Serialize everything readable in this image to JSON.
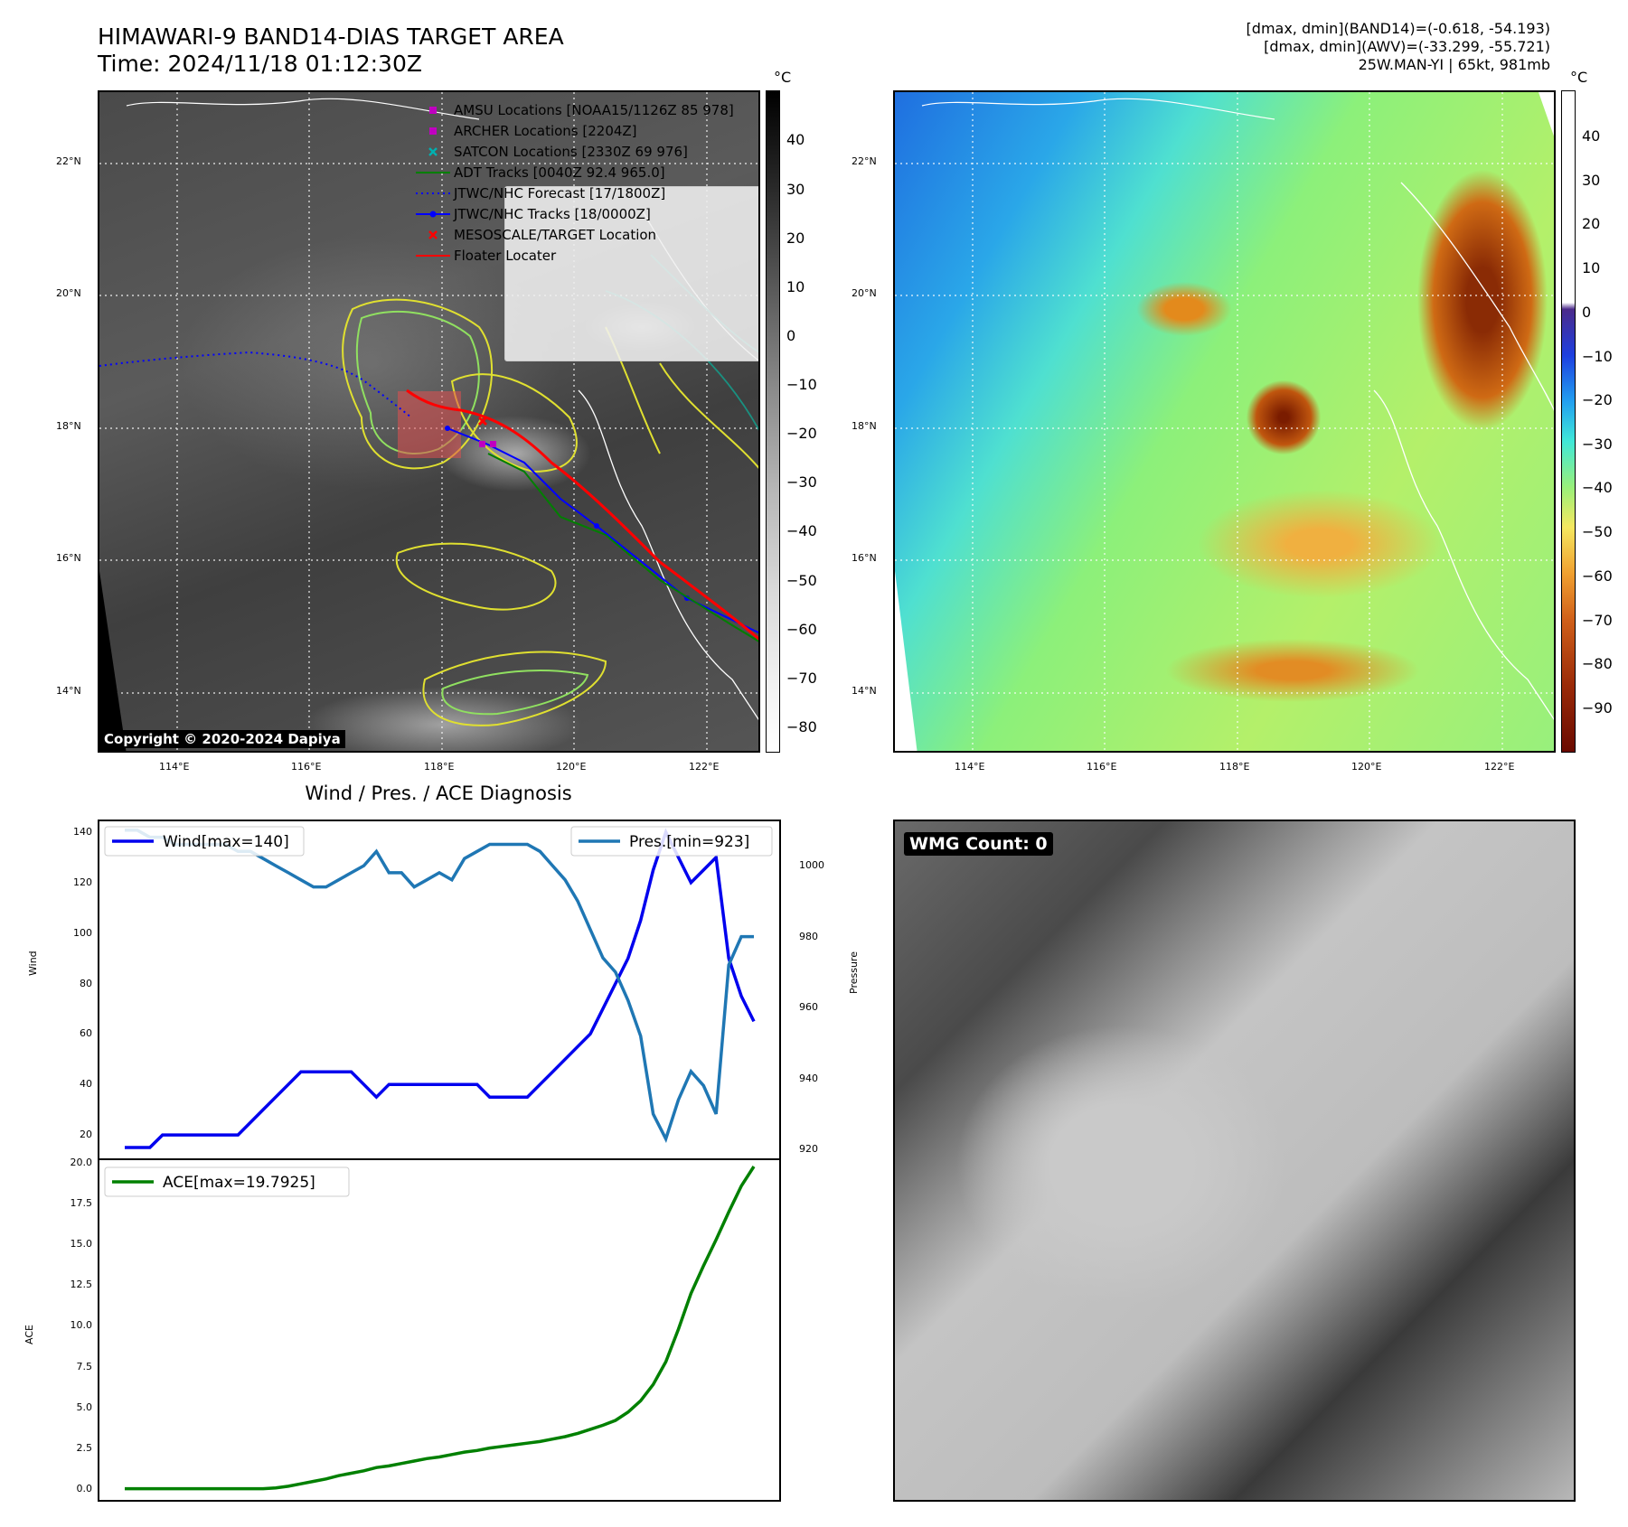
{
  "header": {
    "title_line1": "HIMAWARI-9 BAND14-DIAS TARGET AREA",
    "title_line2": "Time: 2024/11/18 01:12:30Z",
    "stats_line1": "[dmax, dmin](BAND14)=(-0.618, -54.193)",
    "stats_line2": "[dmax, dmin](AWV)=(-33.299, -55.721)",
    "stats_line3": "25W.MAN-YI | 65kt, 981mb"
  },
  "map_left": {
    "lat_ticks": [
      "22°N",
      "20°N",
      "18°N",
      "16°N",
      "14°N"
    ],
    "lon_ticks": [
      "114°E",
      "116°E",
      "118°E",
      "120°E",
      "122°E"
    ],
    "colorbar_unit": "°C",
    "colorbar_ticks": [
      "40",
      "30",
      "20",
      "10",
      "0",
      "−10",
      "−20",
      "−30",
      "−40",
      "−50",
      "−60",
      "−70",
      "−80"
    ],
    "copyright": "Copyright © 2020-2024 Dapiya",
    "legend": [
      {
        "label": "AMSU Locations [NOAA15/1126Z 85 978]",
        "color": "#c000c0",
        "symbol": "square"
      },
      {
        "label": "ARCHER Locations [2204Z]",
        "color": "#c000c0",
        "symbol": "square"
      },
      {
        "label": "SATCON Locations [2330Z 69 976]",
        "color": "#00b0b0",
        "symbol": "x"
      },
      {
        "label": "ADT Tracks [0040Z 92.4 965.0]",
        "color": "#007f00",
        "symbol": "line"
      },
      {
        "label": "JTWC/NHC Forecast [17/1800Z]",
        "color": "#0000ff",
        "symbol": "dotted"
      },
      {
        "label": "JTWC/NHC Tracks [18/0000Z]",
        "color": "#0000ff",
        "symbol": "line-dot"
      },
      {
        "label": "MESOSCALE/TARGET Location",
        "color": "#ff0000",
        "symbol": "x"
      },
      {
        "label": "Floater Locater",
        "color": "#ff0000",
        "symbol": "line"
      }
    ]
  },
  "map_right": {
    "lat_ticks": [
      "22°N",
      "20°N",
      "18°N",
      "16°N",
      "14°N"
    ],
    "lon_ticks": [
      "114°E",
      "116°E",
      "118°E",
      "120°E",
      "122°E"
    ],
    "colorbar_unit": "°C",
    "colorbar_ticks": [
      "40",
      "30",
      "20",
      "10",
      "0",
      "−10",
      "−20",
      "−30",
      "−40",
      "−50",
      "−60",
      "−70",
      "−80",
      "−90"
    ]
  },
  "wmg": {
    "label": "WMG Count: 0"
  },
  "chart_data": [
    {
      "type": "line",
      "title": "Wind / Pres. / ACE Diagnosis",
      "ylabel": "Wind",
      "ylabel_right": "Pressure",
      "ylim": [
        10,
        145
      ],
      "ylim_right": [
        917,
        1013
      ],
      "yticks": [
        "140",
        "120",
        "100",
        "80",
        "60",
        "40",
        "20"
      ],
      "yticks_right": [
        "1000",
        "980",
        "960",
        "940",
        "920"
      ],
      "series": [
        {
          "name": "Wind[max=140]",
          "color": "#0000ee",
          "axis": "left",
          "values": [
            15,
            15,
            15,
            20,
            20,
            20,
            20,
            20,
            20,
            20,
            25,
            30,
            35,
            40,
            45,
            45,
            45,
            45,
            45,
            40,
            35,
            40,
            40,
            40,
            40,
            40,
            40,
            40,
            40,
            35,
            35,
            35,
            35,
            40,
            45,
            50,
            55,
            60,
            70,
            80,
            90,
            105,
            125,
            140,
            130,
            120,
            125,
            130,
            90,
            75,
            65
          ]
        },
        {
          "name": "Pres.[min=923]",
          "color": "#1f77b4",
          "axis": "right",
          "values": [
            1010,
            1010,
            1008,
            1008,
            1006,
            1006,
            1006,
            1006,
            1006,
            1004,
            1004,
            1002,
            1000,
            998,
            996,
            994,
            994,
            996,
            998,
            1000,
            1004,
            998,
            998,
            994,
            996,
            998,
            996,
            1002,
            1004,
            1006,
            1006,
            1006,
            1006,
            1004,
            1000,
            996,
            990,
            982,
            974,
            970,
            962,
            952,
            930,
            923,
            934,
            942,
            938,
            930,
            972,
            980,
            980
          ]
        }
      ]
    },
    {
      "type": "line",
      "ylabel": "ACE",
      "ylim": [
        -0.8,
        20.3
      ],
      "yticks": [
        "20.0",
        "17.5",
        "15.0",
        "12.5",
        "10.0",
        "7.5",
        "5.0",
        "2.5",
        "0.0"
      ],
      "series": [
        {
          "name": "ACE[max=19.7925]",
          "color": "#008000",
          "values": [
            0,
            0,
            0,
            0,
            0,
            0,
            0,
            0,
            0,
            0,
            0,
            0,
            0.05,
            0.15,
            0.3,
            0.45,
            0.6,
            0.8,
            0.95,
            1.1,
            1.3,
            1.4,
            1.55,
            1.7,
            1.85,
            1.95,
            2.1,
            2.25,
            2.35,
            2.5,
            2.6,
            2.7,
            2.8,
            2.9,
            3.05,
            3.2,
            3.4,
            3.65,
            3.9,
            4.2,
            4.7,
            5.4,
            6.4,
            7.8,
            9.8,
            12.0,
            13.7,
            15.3,
            17.0,
            18.6,
            19.8
          ]
        }
      ]
    }
  ]
}
